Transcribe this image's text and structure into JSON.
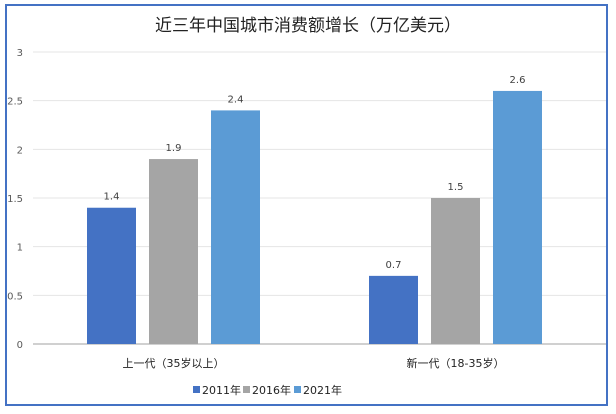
{
  "chart_data": {
    "type": "bar",
    "title": "近三年中国城市消费额增长（万亿美元）",
    "categories": [
      "上一代（35岁以上）",
      "新一代（18-35岁）"
    ],
    "series": [
      {
        "name": "2011年",
        "values": [
          1.4,
          0.7
        ],
        "color": "#4472c4"
      },
      {
        "name": "2016年",
        "values": [
          1.9,
          1.5
        ],
        "color": "#a5a5a5"
      },
      {
        "name": "2021年",
        "values": [
          2.4,
          2.6
        ],
        "color": "#5b9bd5"
      }
    ],
    "yticks": [
      "0",
      "0.5",
      "1",
      "1.5",
      "2",
      "2.5",
      "3"
    ],
    "ylim": [
      0,
      3
    ],
    "grid": true,
    "legend": "bottom",
    "border_color": "#4472c4"
  }
}
